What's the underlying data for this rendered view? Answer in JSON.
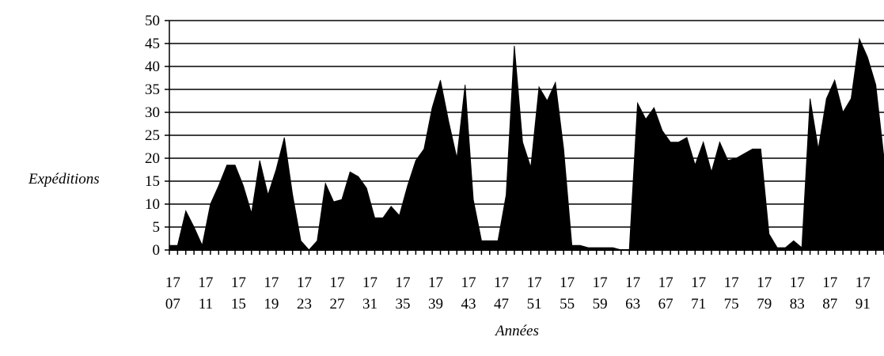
{
  "chart_data": {
    "type": "area",
    "xlabel": "Années",
    "ylabel": "Expéditions",
    "ylim": [
      0,
      50
    ],
    "yticks": [
      0,
      5,
      10,
      15,
      20,
      25,
      30,
      35,
      40,
      45,
      50
    ],
    "xlim": [
      1706,
      1793
    ],
    "xtick_labels": [
      {
        "top": "17",
        "bottom": "07"
      },
      {
        "top": "17",
        "bottom": "11"
      },
      {
        "top": "17",
        "bottom": "15"
      },
      {
        "top": "17",
        "bottom": "19"
      },
      {
        "top": "17",
        "bottom": "23"
      },
      {
        "top": "17",
        "bottom": "27"
      },
      {
        "top": "17",
        "bottom": "31"
      },
      {
        "top": "17",
        "bottom": "35"
      },
      {
        "top": "17",
        "bottom": "39"
      },
      {
        "top": "17",
        "bottom": "43"
      },
      {
        "top": "17",
        "bottom": "47"
      },
      {
        "top": "17",
        "bottom": "51"
      },
      {
        "top": "17",
        "bottom": "55"
      },
      {
        "top": "17",
        "bottom": "59"
      },
      {
        "top": "17",
        "bottom": "63"
      },
      {
        "top": "17",
        "bottom": "67"
      },
      {
        "top": "17",
        "bottom": "71"
      },
      {
        "top": "17",
        "bottom": "75"
      },
      {
        "top": "17",
        "bottom": "79"
      },
      {
        "top": "17",
        "bottom": "83"
      },
      {
        "top": "17",
        "bottom": "87"
      },
      {
        "top": "17",
        "bottom": "91"
      }
    ],
    "grid": true,
    "fill_color": "#000000",
    "x": [
      1706,
      1707,
      1708,
      1709,
      1710,
      1711,
      1712,
      1713,
      1714,
      1715,
      1716,
      1717,
      1718,
      1719,
      1720,
      1721,
      1722,
      1723,
      1724,
      1725,
      1726,
      1727,
      1728,
      1729,
      1730,
      1731,
      1732,
      1733,
      1734,
      1735,
      1736,
      1737,
      1738,
      1739,
      1740,
      1741,
      1742,
      1743,
      1744,
      1745,
      1746,
      1747,
      1748,
      1749,
      1750,
      1751,
      1752,
      1753,
      1754,
      1755,
      1756,
      1757,
      1758,
      1759,
      1760,
      1761,
      1762,
      1763,
      1764,
      1765,
      1766,
      1767,
      1768,
      1769,
      1770,
      1771,
      1772,
      1773,
      1774,
      1775,
      1776,
      1777,
      1778,
      1779,
      1780,
      1781,
      1782,
      1783,
      1784,
      1785,
      1786,
      1787,
      1788,
      1789,
      1790,
      1791,
      1792,
      1793
    ],
    "values": [
      1,
      1,
      8.5,
      5,
      1,
      10,
      14,
      18.5,
      18.5,
      14,
      8,
      19.5,
      12,
      17.5,
      24.5,
      12,
      2,
      0,
      2,
      14.5,
      10.5,
      11,
      17,
      16,
      13.5,
      7,
      7,
      9.5,
      7.5,
      14,
      19.5,
      22,
      31,
      37,
      28,
      20,
      36,
      11,
      2,
      2,
      2,
      12,
      44.5,
      23.5,
      18,
      35.5,
      32.5,
      36.5,
      22,
      1,
      1,
      0.5,
      0.5,
      0.5,
      0.5,
      0,
      0,
      32,
      28.5,
      31,
      26,
      23.5,
      23.5,
      24.5,
      18.5,
      23.5,
      17,
      23.5,
      19.5,
      20,
      21,
      22,
      22,
      3.5,
      0.5,
      0.5,
      2,
      0.5,
      33,
      22,
      33,
      37,
      30,
      33,
      46,
      42,
      36,
      20
    ]
  }
}
